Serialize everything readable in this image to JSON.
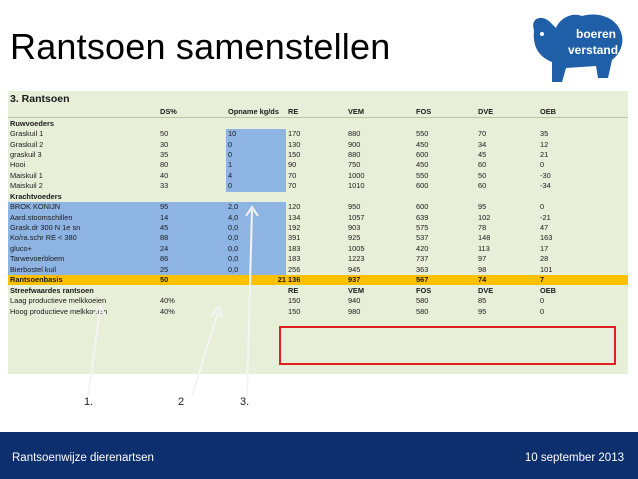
{
  "slide": {
    "title": "Rantsoen samenstellen",
    "logo_text": [
      "boeren",
      "verstand"
    ],
    "footer_left": "Rantsoenwijze dierenartsen",
    "footer_right": "10 september 2013",
    "arrow_labels": [
      "1.",
      "2",
      "3."
    ]
  },
  "sheet": {
    "title": "3. Rantsoen",
    "columns": [
      "",
      "DS%",
      "Opname kg/ds",
      "RE",
      "VEM",
      "FOS",
      "DVE",
      "OEB"
    ],
    "sections": [
      {
        "label": "Ruwvoeders",
        "rows": [
          {
            "name": "Graskuil 1",
            "ds": "50",
            "opname": "10",
            "re": "170",
            "vem": "880",
            "fos": "550",
            "dve": "70",
            "oeb": "35"
          },
          {
            "name": "Graskuil 2",
            "ds": "30",
            "opname": "0",
            "re": "130",
            "vem": "900",
            "fos": "450",
            "dve": "34",
            "oeb": "12"
          },
          {
            "name": "graskuil 3",
            "ds": "35",
            "opname": "0",
            "re": "150",
            "vem": "880",
            "fos": "600",
            "dve": "45",
            "oeb": "21"
          },
          {
            "name": "Hooi",
            "ds": "80",
            "opname": "1",
            "re": "90",
            "vem": "750",
            "fos": "450",
            "dve": "60",
            "oeb": "0"
          },
          {
            "name": "Maiskuil 1",
            "ds": "40",
            "opname": "4",
            "re": "70",
            "vem": "1000",
            "fos": "550",
            "dve": "50",
            "oeb": "-30"
          },
          {
            "name": "Maiskuil 2",
            "ds": "33",
            "opname": "0",
            "re": "70",
            "vem": "1010",
            "fos": "600",
            "dve": "60",
            "oeb": "-34"
          }
        ]
      },
      {
        "label": "Krachtvoeders",
        "rows": [
          {
            "name": "BROK KONIJN",
            "ds": "95",
            "opname": "2,0",
            "re": "120",
            "vem": "950",
            "fos": "600",
            "dve": "95",
            "oeb": "0"
          },
          {
            "name": "Aard.stoomschillen",
            "ds": "14",
            "opname": "4,0",
            "re": "134",
            "vem": "1057",
            "fos": "639",
            "dve": "102",
            "oeb": "-21"
          },
          {
            "name": "Grask.dr 300 N 1e sn",
            "ds": "45",
            "opname": "0,0",
            "re": "192",
            "vem": "903",
            "fos": "575",
            "dve": "78",
            "oeb": "47"
          },
          {
            "name": "Ko/ra.schr RE < 380",
            "ds": "88",
            "opname": "0,0",
            "re": "391",
            "vem": "925",
            "fos": "537",
            "dve": "148",
            "oeb": "163"
          },
          {
            "name": "gluco+",
            "ds": "24",
            "opname": "0,0",
            "re": "183",
            "vem": "1005",
            "fos": "420",
            "dve": "113",
            "oeb": "17"
          },
          {
            "name": "Tarwevoerbloem",
            "ds": "86",
            "opname": "0,0",
            "re": "183",
            "vem": "1223",
            "fos": "737",
            "dve": "97",
            "oeb": "28"
          },
          {
            "name": "Bierbostel kuil",
            "ds": "25",
            "opname": "0,0",
            "re": "256",
            "vem": "945",
            "dve": "98",
            "fos": "363",
            "oeb": "101"
          }
        ]
      }
    ],
    "basis": {
      "name": "Rantsoenbasis",
      "ds": "50",
      "opname": "21",
      "re": "136",
      "vem": "937",
      "fos": "567",
      "dve": "74",
      "oeb": "7"
    },
    "streef_header": {
      "name": "Streefwaardes rantsoen",
      "re": "RE",
      "vem": "VEM",
      "fos": "FOS",
      "dve": "DVE",
      "oeb": "OEB"
    },
    "streef_rows": [
      {
        "name": "Laag productieve melkkoeien",
        "ds": "40%",
        "re": "150",
        "vem": "940",
        "fos": "580",
        "dve": "85",
        "oeb": "0"
      },
      {
        "name": "Hoog productieve melkkoeien",
        "ds": "40%",
        "re": "150",
        "vem": "980",
        "fos": "580",
        "dve": "95",
        "oeb": "0"
      }
    ]
  },
  "colors": {
    "footer_bg": "#0d2f6e",
    "input_blue": "#8eb4e3",
    "basis_orange": "#ffc000",
    "highlight_red": "#e02020",
    "logo_blue": "#1f5fa8"
  }
}
